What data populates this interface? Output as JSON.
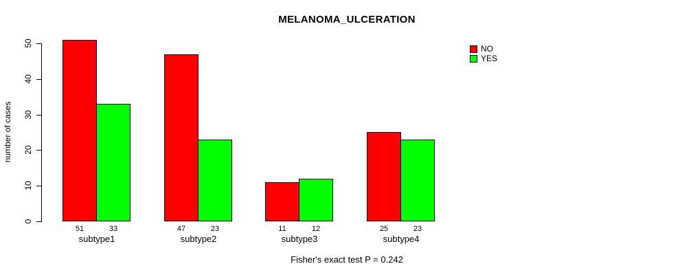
{
  "chart_data": {
    "type": "bar",
    "title": "MELANOMA_ULCERATION",
    "categories": [
      "subtype1",
      "subtype2",
      "subtype3",
      "subtype4"
    ],
    "series": [
      {
        "name": "NO",
        "color": "#ff0000",
        "values": [
          51,
          47,
          11,
          25
        ]
      },
      {
        "name": "YES",
        "color": "#00ff00",
        "values": [
          33,
          23,
          12,
          23
        ]
      }
    ],
    "xlabel": "",
    "ylabel": "number of cases",
    "ylim": [
      0,
      50
    ],
    "yticks": [
      0,
      10,
      20,
      30,
      40,
      50
    ],
    "bar_value_labels": [
      [
        51,
        47,
        11,
        25
      ],
      [
        33,
        23,
        12,
        23
      ]
    ],
    "legend_position": "topright",
    "grid": false,
    "annotation": "Fisher's exact test P = 0.242",
    "bar_border_color": "#000000",
    "background_color": "#ffffff"
  }
}
